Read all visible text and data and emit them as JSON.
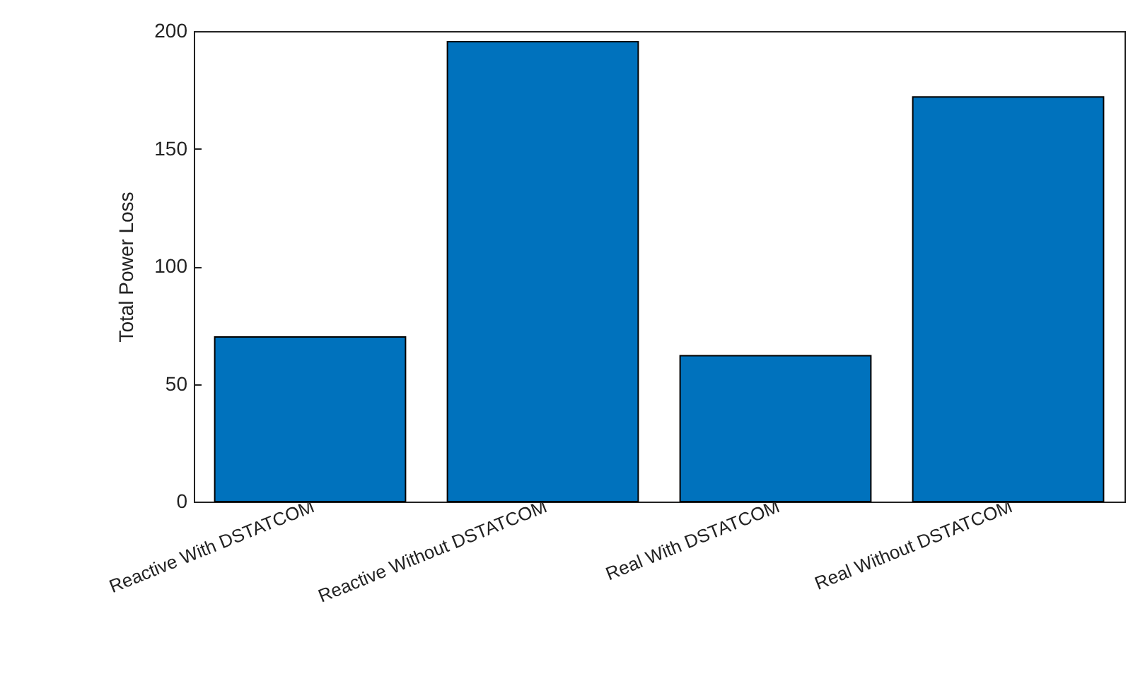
{
  "chart_data": {
    "type": "bar",
    "ylabel": "Total Power Loss",
    "categories": [
      "Reactive With DSTATCOM",
      "Reactive Without DSTATCOM",
      "Real With DSTATCOM",
      "Real Without DSTATCOM"
    ],
    "values": [
      70,
      195.5,
      62,
      172
    ],
    "color": "#0072bd",
    "ylim": [
      0,
      200
    ],
    "yticks": [
      0,
      50,
      100,
      150,
      200
    ],
    "grid": false
  }
}
